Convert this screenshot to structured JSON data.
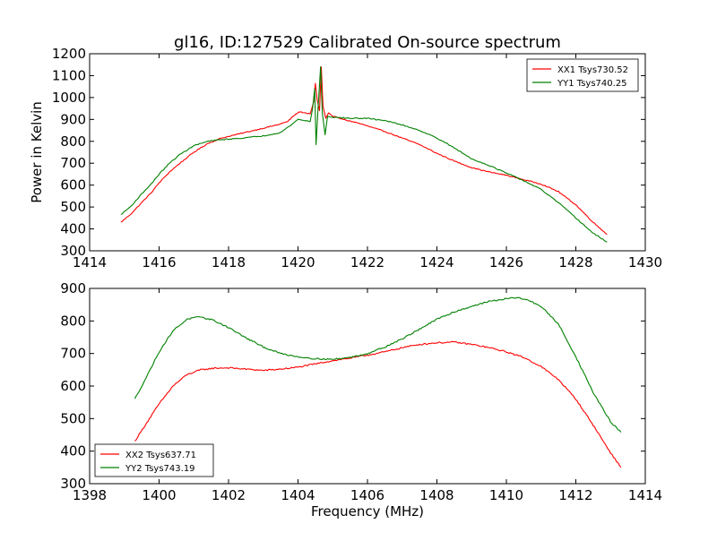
{
  "figure": {
    "title": "gl16, ID:127529 Calibrated On-source spectrum"
  },
  "chart_data": [
    {
      "type": "line",
      "title": "gl16, ID:127529 Calibrated On-source spectrum",
      "xlabel": "",
      "ylabel": "Power in Kelvin",
      "xlim": [
        1414,
        1430
      ],
      "ylim": [
        300,
        1200
      ],
      "xticks": [
        1414,
        1416,
        1418,
        1420,
        1422,
        1424,
        1426,
        1428,
        1430
      ],
      "yticks": [
        300,
        400,
        500,
        600,
        700,
        800,
        900,
        1000,
        1100,
        1200
      ],
      "grid": false,
      "legend_position": "top-right",
      "series": [
        {
          "name": "XX1 Tsys730.52",
          "color": "#ff0000",
          "points": [
            [
              1414.9,
              430
            ],
            [
              1415.2,
              470
            ],
            [
              1415.5,
              520
            ],
            [
              1415.8,
              570
            ],
            [
              1416.0,
              610
            ],
            [
              1416.3,
              660
            ],
            [
              1416.6,
              700
            ],
            [
              1417.0,
              750
            ],
            [
              1417.4,
              790
            ],
            [
              1417.8,
              815
            ],
            [
              1418.2,
              830
            ],
            [
              1418.6,
              845
            ],
            [
              1419.0,
              860
            ],
            [
              1419.4,
              875
            ],
            [
              1419.7,
              890
            ],
            [
              1419.9,
              920
            ],
            [
              1420.05,
              935
            ],
            [
              1420.2,
              930
            ],
            [
              1420.35,
              925
            ],
            [
              1420.45,
              980
            ],
            [
              1420.5,
              1065
            ],
            [
              1420.55,
              990
            ],
            [
              1420.62,
              940
            ],
            [
              1420.67,
              1140
            ],
            [
              1420.72,
              960
            ],
            [
              1420.8,
              905
            ],
            [
              1420.88,
              930
            ],
            [
              1421.0,
              915
            ],
            [
              1421.3,
              900
            ],
            [
              1421.7,
              885
            ],
            [
              1422.0,
              870
            ],
            [
              1422.5,
              845
            ],
            [
              1423.0,
              815
            ],
            [
              1423.5,
              785
            ],
            [
              1424.0,
              745
            ],
            [
              1424.5,
              710
            ],
            [
              1425.0,
              680
            ],
            [
              1425.5,
              660
            ],
            [
              1426.0,
              645
            ],
            [
              1426.5,
              625
            ],
            [
              1427.0,
              605
            ],
            [
              1427.5,
              570
            ],
            [
              1428.0,
              510
            ],
            [
              1428.5,
              430
            ],
            [
              1428.9,
              375
            ]
          ]
        },
        {
          "name": "YY1 Tsys740.25",
          "color": "#008000",
          "points": [
            [
              1414.9,
              465
            ],
            [
              1415.2,
              505
            ],
            [
              1415.5,
              560
            ],
            [
              1415.8,
              610
            ],
            [
              1416.0,
              650
            ],
            [
              1416.3,
              700
            ],
            [
              1416.6,
              740
            ],
            [
              1417.0,
              780
            ],
            [
              1417.4,
              800
            ],
            [
              1417.8,
              808
            ],
            [
              1418.2,
              812
            ],
            [
              1418.6,
              818
            ],
            [
              1419.0,
              825
            ],
            [
              1419.5,
              840
            ],
            [
              1419.8,
              875
            ],
            [
              1420.0,
              900
            ],
            [
              1420.2,
              895
            ],
            [
              1420.35,
              890
            ],
            [
              1420.42,
              950
            ],
            [
              1420.48,
              1040
            ],
            [
              1420.52,
              785
            ],
            [
              1420.57,
              930
            ],
            [
              1420.65,
              1140
            ],
            [
              1420.7,
              930
            ],
            [
              1420.78,
              830
            ],
            [
              1420.85,
              915
            ],
            [
              1421.0,
              910
            ],
            [
              1421.5,
              905
            ],
            [
              1422.0,
              905
            ],
            [
              1422.5,
              895
            ],
            [
              1423.0,
              875
            ],
            [
              1423.5,
              850
            ],
            [
              1424.0,
              815
            ],
            [
              1424.5,
              770
            ],
            [
              1425.0,
              720
            ],
            [
              1425.5,
              690
            ],
            [
              1426.0,
              655
            ],
            [
              1426.5,
              620
            ],
            [
              1427.0,
              580
            ],
            [
              1427.5,
              520
            ],
            [
              1428.0,
              450
            ],
            [
              1428.5,
              380
            ],
            [
              1428.9,
              340
            ]
          ]
        }
      ]
    },
    {
      "type": "line",
      "title": "",
      "xlabel": "Frequency (MHz)",
      "ylabel": "",
      "xlim": [
        1398,
        1414
      ],
      "ylim": [
        300,
        900
      ],
      "xticks": [
        1398,
        1400,
        1402,
        1404,
        1406,
        1408,
        1410,
        1412,
        1414
      ],
      "yticks": [
        300,
        400,
        500,
        600,
        700,
        800,
        900
      ],
      "grid": false,
      "legend_position": "bottom-left",
      "series": [
        {
          "name": "XX2 Tsys637.71",
          "color": "#ff0000",
          "points": [
            [
              1399.3,
              430
            ],
            [
              1399.6,
              480
            ],
            [
              1400.0,
              545
            ],
            [
              1400.4,
              600
            ],
            [
              1400.8,
              635
            ],
            [
              1401.2,
              650
            ],
            [
              1401.6,
              655
            ],
            [
              1402.0,
              656
            ],
            [
              1402.5,
              652
            ],
            [
              1403.0,
              648
            ],
            [
              1403.5,
              652
            ],
            [
              1404.0,
              658
            ],
            [
              1404.5,
              668
            ],
            [
              1405.0,
              678
            ],
            [
              1405.5,
              686
            ],
            [
              1406.0,
              695
            ],
            [
              1406.5,
              705
            ],
            [
              1407.0,
              718
            ],
            [
              1407.5,
              728
            ],
            [
              1408.0,
              733
            ],
            [
              1408.5,
              735
            ],
            [
              1409.0,
              728
            ],
            [
              1409.5,
              718
            ],
            [
              1410.0,
              705
            ],
            [
              1410.5,
              688
            ],
            [
              1411.0,
              660
            ],
            [
              1411.5,
              620
            ],
            [
              1412.0,
              560
            ],
            [
              1412.5,
              480
            ],
            [
              1413.0,
              395
            ],
            [
              1413.3,
              350
            ]
          ]
        },
        {
          "name": "YY2 Tsys743.19",
          "color": "#008000",
          "points": [
            [
              1399.3,
              560
            ],
            [
              1399.6,
              620
            ],
            [
              1400.0,
              705
            ],
            [
              1400.4,
              770
            ],
            [
              1400.8,
              805
            ],
            [
              1401.1,
              812
            ],
            [
              1401.5,
              805
            ],
            [
              1402.0,
              780
            ],
            [
              1402.5,
              748
            ],
            [
              1403.0,
              720
            ],
            [
              1403.5,
              700
            ],
            [
              1404.0,
              690
            ],
            [
              1404.5,
              684
            ],
            [
              1405.0,
              682
            ],
            [
              1405.5,
              688
            ],
            [
              1406.0,
              700
            ],
            [
              1406.5,
              720
            ],
            [
              1407.0,
              745
            ],
            [
              1407.5,
              775
            ],
            [
              1408.0,
              805
            ],
            [
              1408.5,
              828
            ],
            [
              1409.0,
              845
            ],
            [
              1409.5,
              860
            ],
            [
              1410.0,
              868
            ],
            [
              1410.3,
              872
            ],
            [
              1410.6,
              865
            ],
            [
              1411.0,
              845
            ],
            [
              1411.5,
              790
            ],
            [
              1412.0,
              690
            ],
            [
              1412.5,
              580
            ],
            [
              1413.0,
              490
            ],
            [
              1413.3,
              458
            ]
          ]
        }
      ]
    }
  ]
}
